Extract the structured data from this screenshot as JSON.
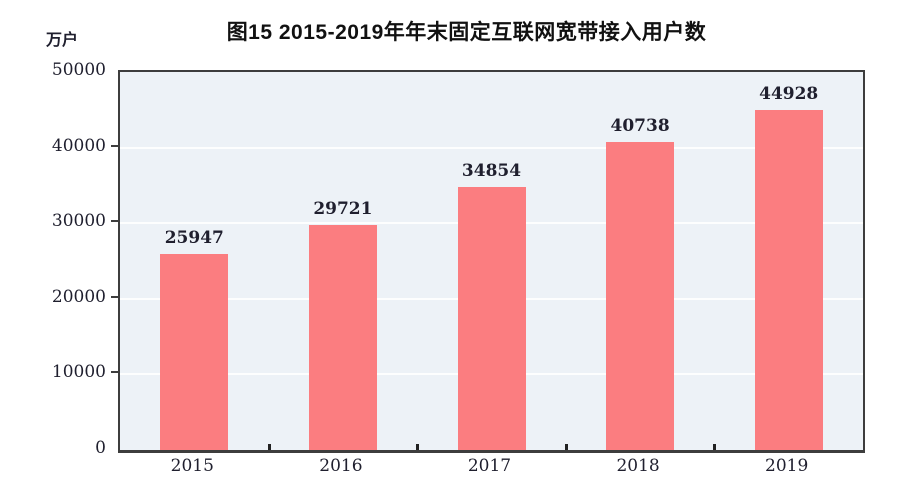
{
  "figure": {
    "title": "图15 2015-2019年年末固定互联网宽带接入用户数",
    "unit_label": "万户"
  },
  "chart_data": {
    "type": "bar",
    "title": "图15 2015-2019年年末固定互联网宽带接入用户数",
    "categories": [
      "2015",
      "2016",
      "2017",
      "2018",
      "2019"
    ],
    "values": [
      25947,
      29721,
      34854,
      40738,
      44928
    ],
    "data_labels": [
      "25947",
      "29721",
      "34854",
      "40738",
      "44928"
    ],
    "xlabel": "",
    "ylabel": "万户",
    "ylim": [
      0,
      50000
    ],
    "yticks": [
      0,
      10000,
      20000,
      30000,
      40000,
      50000
    ],
    "ytick_labels": [
      "0",
      "10000",
      "20000",
      "30000",
      "40000",
      "50000"
    ],
    "grid": true,
    "legend_position": "none",
    "bar_color": "#fb7d80",
    "plot_background": "#edf2f7",
    "gridline_color": "#fdfefe",
    "text_color": "#1f1f2e"
  }
}
